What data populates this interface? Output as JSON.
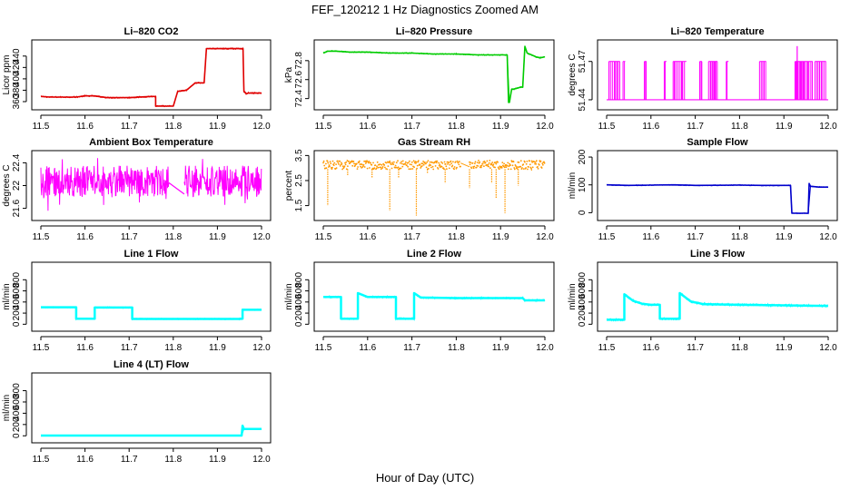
{
  "figure": {
    "title": "FEF_120212  1 Hz Diagnostics Zoomed AM",
    "xlabel": "Hour of Day (UTC)"
  },
  "chart_data": [
    {
      "id": "co2",
      "type": "line",
      "title": "Li–820 CO2",
      "ylabel": "Licor ppm",
      "color": "#e00000",
      "xlim": [
        11.5,
        12.0
      ],
      "ylim": [
        352,
        462
      ],
      "xticks": [
        11.5,
        11.6,
        11.7,
        11.8,
        11.9,
        12.0
      ],
      "yticks": [
        360,
        380,
        400,
        420,
        440
      ],
      "x": [
        11.5,
        11.52,
        11.55,
        11.58,
        11.6,
        11.62,
        11.65,
        11.68,
        11.7,
        11.75,
        11.76,
        11.76,
        11.8,
        11.81,
        11.83,
        11.85,
        11.86,
        11.87,
        11.875,
        11.9,
        11.95,
        11.958,
        11.96,
        11.965,
        11.97,
        12.0
      ],
      "y": [
        369,
        368,
        368,
        368,
        370,
        370,
        367,
        367,
        367,
        369,
        369,
        352,
        352,
        378,
        380,
        393,
        393,
        393,
        453,
        453,
        453,
        453,
        378,
        374,
        375,
        375
      ]
    },
    {
      "id": "pressure",
      "type": "line",
      "title": "Li–820 Pressure",
      "ylabel": "kPa",
      "color": "#00cc00",
      "xlim": [
        11.5,
        12.0
      ],
      "ylim": [
        72.32,
        72.98
      ],
      "xticks": [
        11.5,
        11.6,
        11.7,
        11.8,
        11.9,
        12.0
      ],
      "yticks": [
        72.4,
        72.6,
        72.8
      ],
      "x": [
        11.5,
        11.51,
        11.53,
        11.56,
        11.6,
        11.65,
        11.7,
        11.75,
        11.8,
        11.85,
        11.88,
        11.9,
        11.915,
        11.918,
        11.92,
        11.925,
        11.93,
        11.945,
        11.95,
        11.955,
        11.96,
        11.97,
        11.98,
        11.99,
        12.0
      ],
      "y": [
        72.88,
        72.9,
        72.9,
        72.89,
        72.89,
        72.88,
        72.88,
        72.87,
        72.87,
        72.86,
        72.86,
        72.86,
        72.86,
        72.36,
        72.36,
        72.5,
        72.5,
        72.52,
        72.52,
        72.95,
        72.88,
        72.86,
        72.84,
        72.83,
        72.84
      ]
    },
    {
      "id": "temperature",
      "type": "line",
      "title": "Li–820 Temperature",
      "ylabel": "degrees C",
      "color": "#ff00ff",
      "xlim": [
        11.5,
        12.0
      ],
      "ylim": [
        51.435,
        51.484
      ],
      "xticks": [
        11.5,
        11.6,
        11.7,
        11.8,
        11.9,
        12.0
      ],
      "yticks": [
        51.44,
        51.47
      ],
      "baseline": 51.44,
      "high": 51.47,
      "spike_ranges": [
        [
          11.505,
          11.53
        ],
        [
          11.537,
          11.542
        ],
        [
          11.585,
          11.59
        ],
        [
          11.63,
          11.635
        ],
        [
          11.65,
          11.68
        ],
        [
          11.71,
          11.715
        ],
        [
          11.73,
          11.75
        ],
        [
          11.77,
          11.775
        ],
        [
          11.845,
          11.86
        ],
        [
          11.925,
          11.965
        ],
        [
          11.97,
          11.995
        ]
      ],
      "peak": {
        "x": 11.93,
        "y": 51.482
      }
    },
    {
      "id": "ambient",
      "type": "line",
      "title": "Ambient Box Temperature",
      "ylabel": "degrees C",
      "color": "#ff00ff",
      "xlim": [
        11.5,
        12.0
      ],
      "ylim": [
        21.45,
        22.55
      ],
      "xticks": [
        11.5,
        11.6,
        11.7,
        11.8,
        11.9,
        12.0
      ],
      "yticks": [
        21.6,
        22.0,
        22.4
      ],
      "band": [
        21.8,
        22.35
      ],
      "spike_range": [
        21.5,
        22.5
      ],
      "gap": [
        11.79,
        11.825
      ],
      "gap_line": [
        [
          11.79,
          22.05
        ],
        [
          11.825,
          21.85
        ]
      ]
    },
    {
      "id": "rh",
      "type": "line",
      "title": "Gas Stream RH",
      "ylabel": "percent",
      "color": "#ff9900",
      "xlim": [
        11.5,
        12.0
      ],
      "ylim": [
        1.05,
        3.55
      ],
      "xticks": [
        11.5,
        11.6,
        11.7,
        11.8,
        11.9,
        12.0
      ],
      "yticks": [
        1.5,
        2.5,
        3.5
      ],
      "band": [
        2.95,
        3.3
      ],
      "gap": [
        11.81,
        11.83
      ],
      "dips": [
        [
          11.51,
          1.5
        ],
        [
          11.555,
          2.7
        ],
        [
          11.61,
          2.6
        ],
        [
          11.65,
          1.3
        ],
        [
          11.67,
          2.6
        ],
        [
          11.71,
          1.1
        ],
        [
          11.735,
          2.8
        ],
        [
          11.775,
          2.4
        ],
        [
          11.83,
          2.2
        ],
        [
          11.88,
          2.4
        ],
        [
          11.89,
          1.8
        ],
        [
          11.91,
          1.2
        ],
        [
          11.94,
          2.3
        ],
        [
          11.97,
          2.9
        ]
      ]
    },
    {
      "id": "sample",
      "type": "line",
      "title": "Sample Flow",
      "ylabel": "ml/min",
      "color": "#0000cc",
      "xlim": [
        11.5,
        12.0
      ],
      "ylim": [
        -15,
        210
      ],
      "xticks": [
        11.5,
        11.6,
        11.7,
        11.8,
        11.9,
        12.0
      ],
      "yticks": [
        0,
        100,
        200
      ],
      "x": [
        11.5,
        11.55,
        11.6,
        11.65,
        11.7,
        11.8,
        11.85,
        11.9,
        11.915,
        11.918,
        11.955,
        11.957,
        11.96,
        11.98,
        12.0
      ],
      "y": [
        100,
        98,
        99,
        100,
        98,
        99,
        98,
        98,
        98,
        -2,
        -2,
        105,
        95,
        92,
        92
      ]
    },
    {
      "id": "line1",
      "type": "line",
      "title": "Line 1 Flow",
      "ylabel": "ml/min",
      "color": "#00ffff",
      "xlim": [
        11.5,
        12.0
      ],
      "ylim": [
        -60,
        1050
      ],
      "xticks": [
        11.5,
        11.6,
        11.7,
        11.8,
        11.9,
        12.0
      ],
      "yticks": [
        0,
        200,
        400,
        600,
        800
      ],
      "x": [
        11.5,
        11.58,
        11.58,
        11.622,
        11.622,
        11.707,
        11.707,
        11.95,
        11.957,
        11.957,
        12.0
      ],
      "y": [
        305,
        305,
        100,
        100,
        300,
        300,
        95,
        95,
        100,
        260,
        260
      ]
    },
    {
      "id": "line2",
      "type": "line",
      "title": "Line 2 Flow",
      "ylabel": "ml/min",
      "color": "#00ffff",
      "xlim": [
        11.5,
        12.0
      ],
      "ylim": [
        -60,
        1050
      ],
      "xticks": [
        11.5,
        11.6,
        11.7,
        11.8,
        11.9,
        12.0
      ],
      "yticks": [
        0,
        200,
        400,
        600,
        800
      ],
      "x": [
        11.5,
        11.54,
        11.54,
        11.578,
        11.578,
        11.6,
        11.664,
        11.664,
        11.705,
        11.705,
        11.72,
        11.8,
        11.95,
        11.955,
        12.0
      ],
      "y": [
        490,
        490,
        100,
        100,
        560,
        490,
        490,
        100,
        100,
        560,
        480,
        470,
        470,
        430,
        430
      ]
    },
    {
      "id": "line3",
      "type": "line",
      "title": "Line 3 Flow",
      "ylabel": "ml/min",
      "color": "#00ffff",
      "xlim": [
        11.5,
        12.0
      ],
      "ylim": [
        -60,
        1050
      ],
      "xticks": [
        11.5,
        11.6,
        11.7,
        11.8,
        11.9,
        12.0
      ],
      "yticks": [
        0,
        200,
        400,
        600,
        800
      ],
      "x": [
        11.5,
        11.54,
        11.54,
        11.56,
        11.58,
        11.6,
        11.62,
        11.62,
        11.665,
        11.665,
        11.69,
        11.72,
        11.8,
        11.9,
        12.0
      ],
      "y": [
        80,
        80,
        540,
        420,
        370,
        350,
        350,
        100,
        100,
        560,
        410,
        360,
        350,
        340,
        330
      ]
    },
    {
      "id": "line4",
      "type": "line",
      "title": "Line 4 (LT) Flow",
      "ylabel": "ml/min",
      "color": "#00ffff",
      "xlim": [
        11.5,
        12.0
      ],
      "ylim": [
        -60,
        1050
      ],
      "xticks": [
        11.5,
        11.6,
        11.7,
        11.8,
        11.9,
        12.0
      ],
      "yticks": [
        0,
        200,
        400,
        600,
        800
      ],
      "x": [
        11.5,
        11.955,
        11.957,
        11.96,
        12.0
      ],
      "y": [
        5,
        5,
        180,
        120,
        120
      ]
    }
  ]
}
